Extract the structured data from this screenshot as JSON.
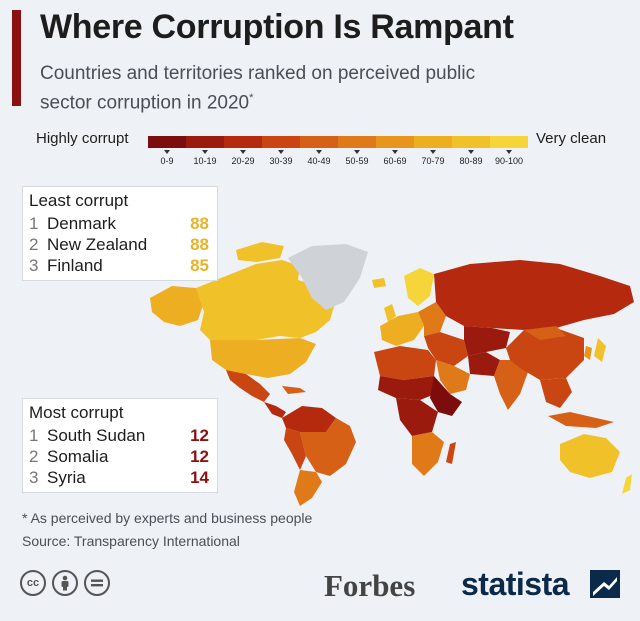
{
  "header": {
    "title": "Where Corruption Is Rampant",
    "subtitle": "Countries and territories ranked on perceived public sector corruption in 2020",
    "subtitle_marker": "*"
  },
  "legend": {
    "low_label": "Highly corrupt",
    "high_label": "Very clean",
    "ranges": [
      "0-9",
      "10-19",
      "20-29",
      "30-39",
      "40-49",
      "50-59",
      "60-69",
      "70-79",
      "80-89",
      "90-100"
    ],
    "colors": [
      "#7d0d0d",
      "#9a1a0e",
      "#b52a0f",
      "#c94612",
      "#d66015",
      "#e07a18",
      "#e8951d",
      "#eeae22",
      "#f1c12a",
      "#f5d53a"
    ]
  },
  "least_corrupt": {
    "title": "Least corrupt",
    "rows": [
      {
        "rank": "1",
        "country": "Denmark",
        "score": "88"
      },
      {
        "rank": "2",
        "country": "New Zealand",
        "score": "88"
      },
      {
        "rank": "3",
        "country": "Finland",
        "score": "85"
      }
    ]
  },
  "most_corrupt": {
    "title": "Most corrupt",
    "rows": [
      {
        "rank": "1",
        "country": "South Sudan",
        "score": "12"
      },
      {
        "rank": "2",
        "country": "Somalia",
        "score": "12"
      },
      {
        "rank": "3",
        "country": "Syria",
        "score": "14"
      }
    ]
  },
  "footer": {
    "footnote": "* As perceived by experts and business people",
    "source": "Source: Transparency International",
    "license_icons": [
      "creative-commons-icon",
      "attribution-icon",
      "no-derivatives-icon"
    ],
    "forbes_logo": "Forbes",
    "statista_logo": "statista"
  }
}
